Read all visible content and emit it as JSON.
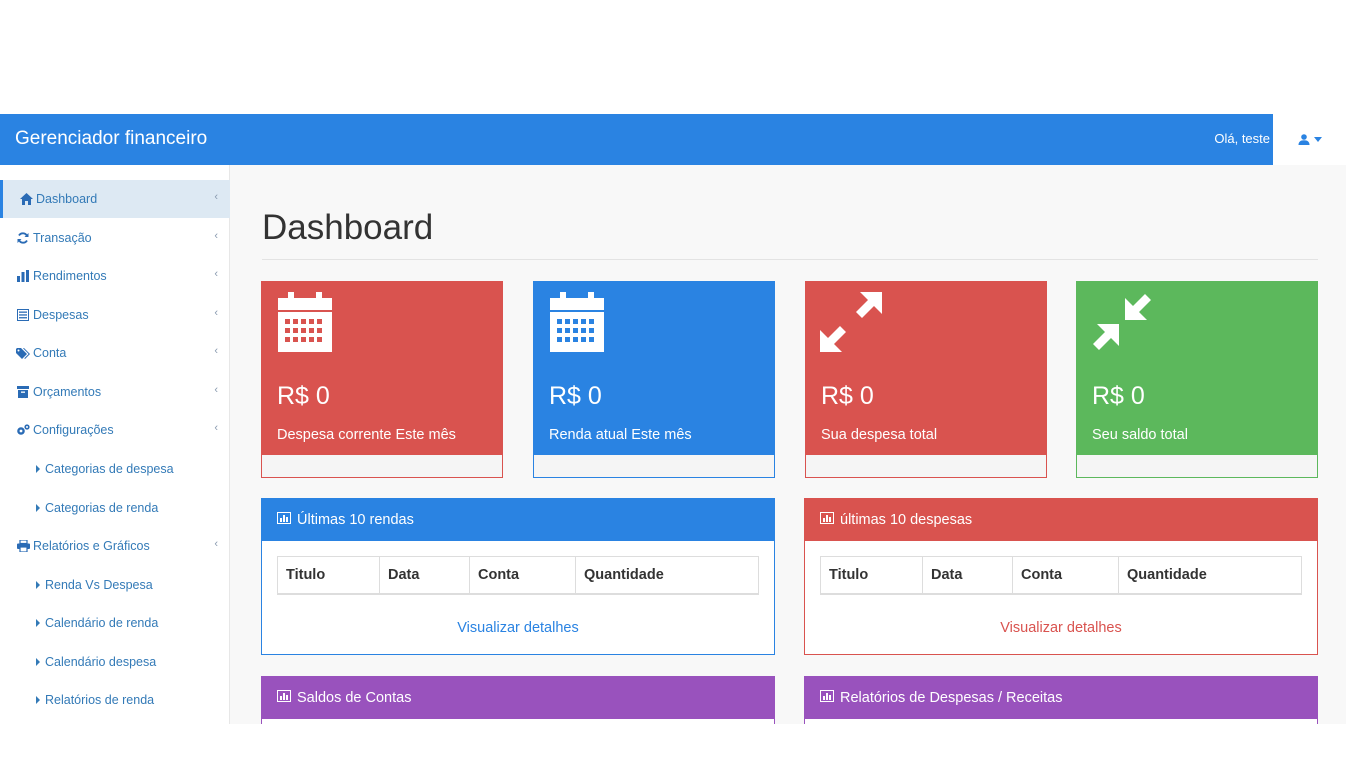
{
  "header": {
    "brand": "Gerenciador financeiro",
    "greeting": "Olá, teste"
  },
  "sidebar": {
    "items": [
      {
        "label": "Dashboard",
        "icon": "home-icon"
      },
      {
        "label": "Transação",
        "icon": "refresh-icon"
      },
      {
        "label": "Rendimentos",
        "icon": "bar-chart-icon"
      },
      {
        "label": "Despesas",
        "icon": "list-icon"
      },
      {
        "label": "Conta",
        "icon": "tags-icon"
      },
      {
        "label": "Orçamentos",
        "icon": "archive-icon"
      },
      {
        "label": "Configurações",
        "icon": "cogs-icon"
      },
      {
        "label": "Relatórios e Gráficos",
        "icon": "print-icon"
      }
    ],
    "sub_config": [
      "Categorias de despesa",
      "Categorias de renda"
    ],
    "sub_reports": [
      "Renda Vs Despesa",
      "Calendário de renda",
      "Calendário despesa",
      "Relatórios de renda"
    ]
  },
  "page": {
    "title": "Dashboard"
  },
  "stats": [
    {
      "amount": "R$ 0",
      "label": "Despesa corrente Este mês",
      "color": "#d9534f",
      "icon": "calendar-icon"
    },
    {
      "amount": "R$ 0",
      "label": "Renda atual Este mês",
      "color": "#2a83e2",
      "icon": "calendar-icon"
    },
    {
      "amount": "R$ 0",
      "label": "Sua despesa total",
      "color": "#d9534f",
      "icon": "expand-icon"
    },
    {
      "amount": "R$ 0",
      "label": "Seu saldo total",
      "color": "#5cb85c",
      "icon": "compress-icon"
    }
  ],
  "panels": {
    "incomes": {
      "title": "Últimas 10 rendas",
      "columns": [
        "Titulo",
        "Data",
        "Conta",
        "Quantidade"
      ],
      "link": "Visualizar detalhes",
      "color": "#2a83e2"
    },
    "expenses": {
      "title": "últimas 10 despesas",
      "columns": [
        "Titulo",
        "Data",
        "Conta",
        "Quantidade"
      ],
      "link": "Visualizar detalhes",
      "color": "#d9534f"
    },
    "balances": {
      "title": "Saldos de Contas",
      "color": "#9952bd"
    },
    "reports": {
      "title": "Relatórios de Despesas / Receitas",
      "color": "#9952bd"
    }
  }
}
